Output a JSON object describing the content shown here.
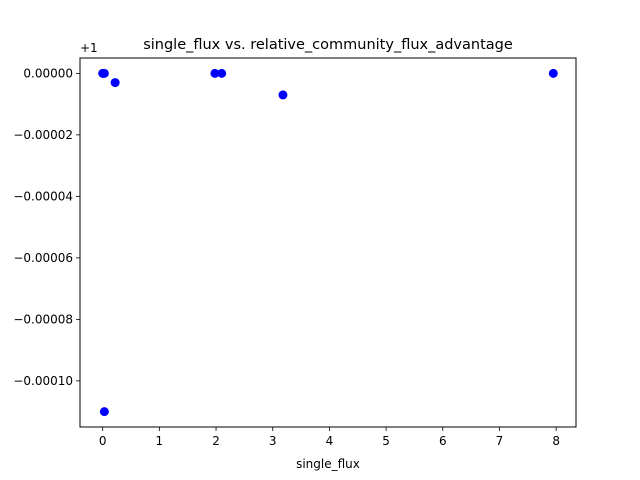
{
  "chart_data": {
    "type": "scatter",
    "title": "single_flux vs. relative_community_flux_advantage",
    "xlabel": "single_flux",
    "ylabel": "",
    "offset_label": "+1",
    "xlim": [
      -0.4,
      8.35
    ],
    "ylim": [
      -0.000115,
      5e-06
    ],
    "x_ticks": [
      0,
      1,
      2,
      3,
      4,
      5,
      6,
      7,
      8
    ],
    "x_tick_labels": [
      "0",
      "1",
      "2",
      "3",
      "4",
      "5",
      "6",
      "7",
      "8"
    ],
    "y_ticks": [
      0.0,
      -2e-05,
      -4e-05,
      -6e-05,
      -8e-05,
      -0.0001
    ],
    "y_tick_labels": [
      "0.00000",
      "−0.00002",
      "−0.00004",
      "−0.00006",
      "−0.00008",
      "−0.00010"
    ],
    "grid": false,
    "marker_color": "#0000ff",
    "series": [
      {
        "x": [
          0.0,
          0.01,
          0.03,
          0.22,
          1.98,
          2.1,
          3.18,
          7.95,
          0.03
        ],
        "y": [
          1.0,
          1.0,
          1.0,
          0.999997,
          1.0,
          1.0,
          0.999993,
          1.0,
          0.99989
        ]
      }
    ]
  }
}
